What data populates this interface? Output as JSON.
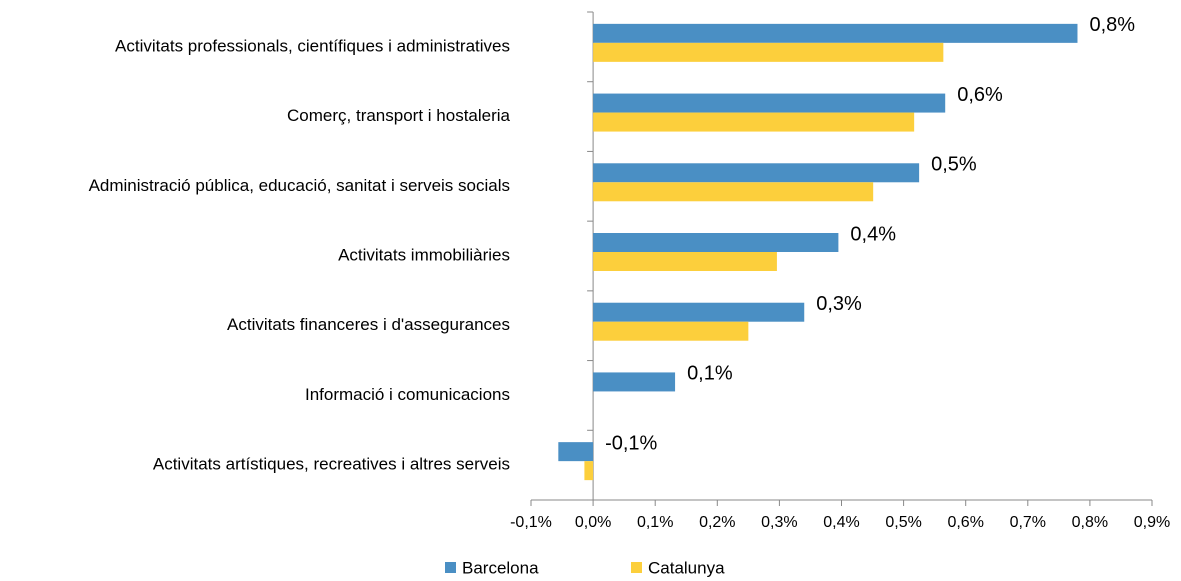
{
  "chart_data": {
    "type": "bar",
    "orientation": "horizontal",
    "categories": [
      "Activitats professionals, científiques i administratives",
      "Comerç, transport i hostaleria",
      "Administració pública, educació, sanitat i serveis socials",
      "Activitats immobiliàries",
      "Activitats financeres i d'assegurances",
      "Informació i comunicacions",
      "Activitats artístiques, recreatives i altres serveis"
    ],
    "series": [
      {
        "name": "Barcelona",
        "color": "#4a8fc4",
        "values": [
          0.78,
          0.567,
          0.525,
          0.395,
          0.34,
          0.132,
          -0.056
        ],
        "value_labels": [
          "0,8%",
          "0,6%",
          "0,5%",
          "0,4%",
          "0,3%",
          "0,1%",
          "-0,1%"
        ]
      },
      {
        "name": "Catalunya",
        "color": "#fccf3c",
        "values": [
          0.564,
          0.517,
          0.451,
          0.296,
          0.25,
          null,
          -0.014
        ]
      }
    ],
    "xlim": [
      -0.1,
      0.9
    ],
    "xticks": [
      {
        "value": -0.1,
        "label": "-0,1%"
      },
      {
        "value": 0,
        "label": "0,0%"
      },
      {
        "value": 0.1,
        "label": "0,1%"
      },
      {
        "value": 0.2,
        "label": "0,2%"
      },
      {
        "value": 0.3,
        "label": "0,3%"
      },
      {
        "value": 0.4,
        "label": "0,4%"
      },
      {
        "value": 0.5,
        "label": "0,5%"
      },
      {
        "value": 0.6,
        "label": "0,6%"
      },
      {
        "value": 0.7,
        "label": "0,7%"
      },
      {
        "value": 0.8,
        "label": "0,8%"
      },
      {
        "value": 0.9,
        "label": "0,9%"
      }
    ],
    "legend": "bottom"
  }
}
